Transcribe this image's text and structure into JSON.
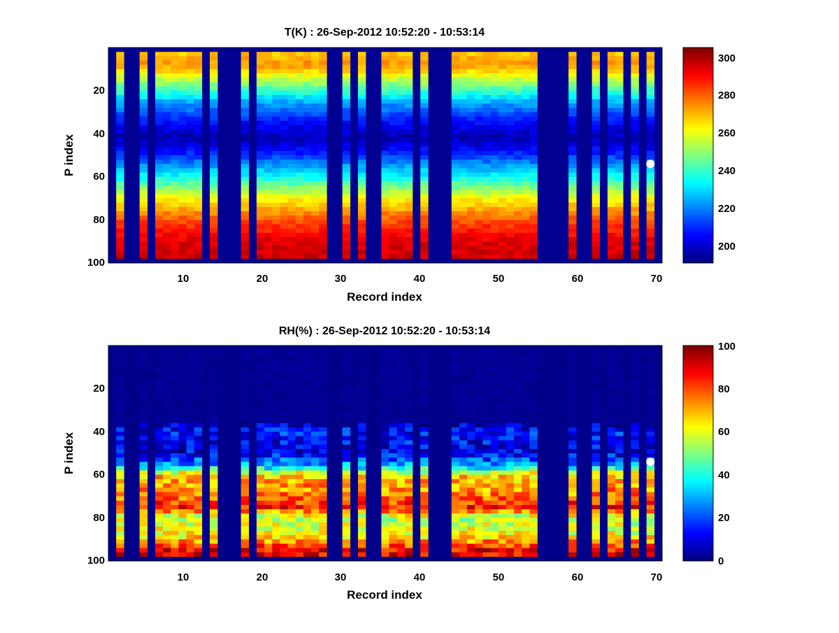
{
  "chart_data": [
    {
      "type": "heatmap",
      "title": "T(K) : 26-Sep-2012 10:52:20 - 10:53:14",
      "xlabel": "Record index",
      "ylabel": "P index",
      "x_ticks": [
        "10",
        "20",
        "30",
        "40",
        "50",
        "60",
        "70"
      ],
      "y_ticks": [
        "20",
        "40",
        "60",
        "80",
        "100"
      ],
      "xlim": [
        0.5,
        71.5
      ],
      "ylim": [
        0,
        100
      ],
      "colorbar": {
        "range": [
          190,
          306
        ],
        "ticks": [
          "200",
          "220",
          "240",
          "260",
          "280",
          "300"
        ],
        "colormap": "jet"
      },
      "active_records": [
        2,
        5,
        7,
        8,
        9,
        10,
        11,
        12,
        14,
        18,
        20,
        21,
        22,
        23,
        24,
        25,
        26,
        27,
        28,
        31,
        33,
        36,
        37,
        38,
        39,
        41,
        45,
        46,
        47,
        48,
        49,
        50,
        51,
        52,
        53,
        54,
        55,
        60,
        63,
        65,
        66,
        68,
        70
      ],
      "vertical_profile": {
        "p_index": [
          0,
          8,
          15,
          25,
          35,
          42,
          50,
          60,
          70,
          80,
          90,
          100
        ],
        "value": [
          265,
          275,
          255,
          225,
          205,
          195,
          210,
          235,
          262,
          282,
          295,
          298
        ]
      },
      "dry_value": 192,
      "marker": {
        "record": 70,
        "p_index": 54
      }
    },
    {
      "type": "heatmap",
      "title": "RH(%) : 26-Sep-2012 10:52:20 - 10:53:14",
      "xlabel": "Record index",
      "ylabel": "P index",
      "x_ticks": [
        "10",
        "20",
        "30",
        "40",
        "50",
        "60",
        "70"
      ],
      "y_ticks": [
        "20",
        "40",
        "60",
        "80",
        "100"
      ],
      "xlim": [
        0.5,
        71.5
      ],
      "ylim": [
        0,
        100
      ],
      "colorbar": {
        "range": [
          0,
          100
        ],
        "ticks": [
          "0",
          "20",
          "40",
          "60",
          "80",
          "100"
        ],
        "colormap": "jet"
      },
      "active_records": [
        2,
        5,
        7,
        8,
        9,
        10,
        11,
        12,
        14,
        18,
        20,
        21,
        22,
        23,
        24,
        25,
        26,
        27,
        28,
        31,
        33,
        36,
        37,
        38,
        39,
        41,
        45,
        46,
        47,
        48,
        49,
        50,
        51,
        52,
        53,
        54,
        55,
        60,
        63,
        65,
        66,
        68,
        70
      ],
      "vertical_profile": {
        "p_index": [
          0,
          35,
          40,
          50,
          56,
          60,
          70,
          75,
          80,
          88,
          95,
          100
        ],
        "value": [
          2,
          2,
          15,
          10,
          30,
          68,
          75,
          85,
          55,
          62,
          88,
          92
        ]
      },
      "dry_value": 1,
      "marker": {
        "record": 70,
        "p_index": 54
      }
    }
  ]
}
